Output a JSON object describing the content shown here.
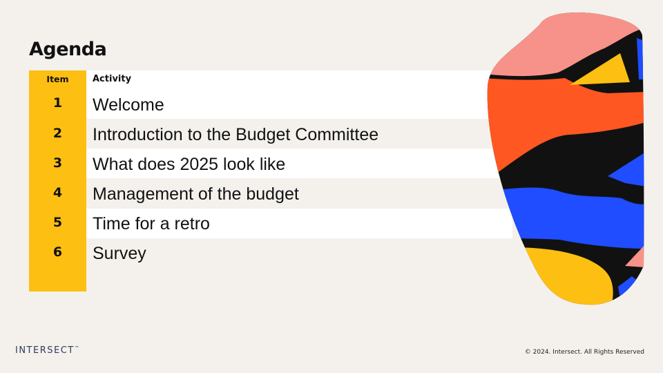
{
  "slide": {
    "title": "Agenda",
    "table": {
      "header_item": "Item",
      "header_activity": "Activity",
      "rows": [
        {
          "item": "1",
          "activity": "Welcome"
        },
        {
          "item": "2",
          "activity": "Introduction to the Budget Committee"
        },
        {
          "item": "3",
          "activity": "What does 2025 look like"
        },
        {
          "item": "4",
          "activity": "Management of the budget"
        },
        {
          "item": "5",
          "activity": "Time for a retro"
        },
        {
          "item": "6",
          "activity": "Survey"
        }
      ]
    }
  },
  "footer": {
    "logo_text": "INTERSECT",
    "logo_tm": "™",
    "copyright": "© 2024. Intersect. All Rights Reserved"
  },
  "colors": {
    "background": "#f4f1ec",
    "accent_yellow": "#fdbf12",
    "vase_pink": "#f7928a",
    "vase_orange": "#ff5722",
    "vase_blue": "#1f4dff",
    "vase_black": "#111111"
  }
}
